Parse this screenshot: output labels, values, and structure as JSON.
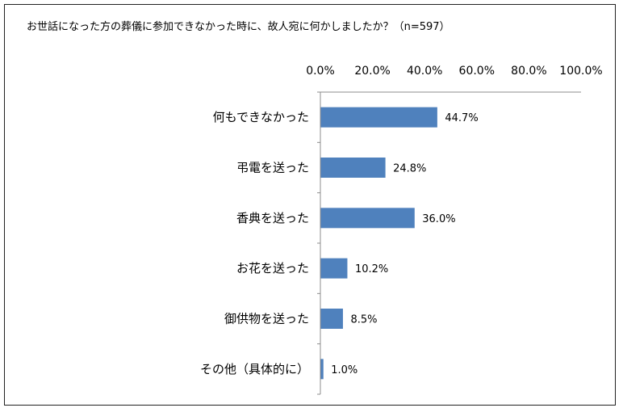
{
  "chart_data": {
    "type": "bar",
    "orientation": "horizontal",
    "title": "お世話になった方の葬儀に参加できなかった時に、故人宛に何かしましたか？（n=597）",
    "categories": [
      "何もできなかった",
      "弔電を送った",
      "香典を送った",
      "お花を送った",
      "御供物を送った",
      "その他（具体的に）"
    ],
    "values": [
      44.7,
      24.8,
      36.0,
      10.2,
      8.5,
      1.0
    ],
    "data_labels": [
      "44.7%",
      "24.8%",
      "36.0%",
      "10.2%",
      "8.5%",
      "1.0%"
    ],
    "xlim": [
      0,
      100
    ],
    "x_ticks": [
      "0.0%",
      "20.0%",
      "40.0%",
      "60.0%",
      "80.0%",
      "100.0%"
    ],
    "x_tick_values": [
      0,
      20,
      40,
      60,
      80,
      100
    ],
    "x_axis_position": "top",
    "grid": false,
    "legend": "none",
    "bar_color": "#4f81bd"
  }
}
